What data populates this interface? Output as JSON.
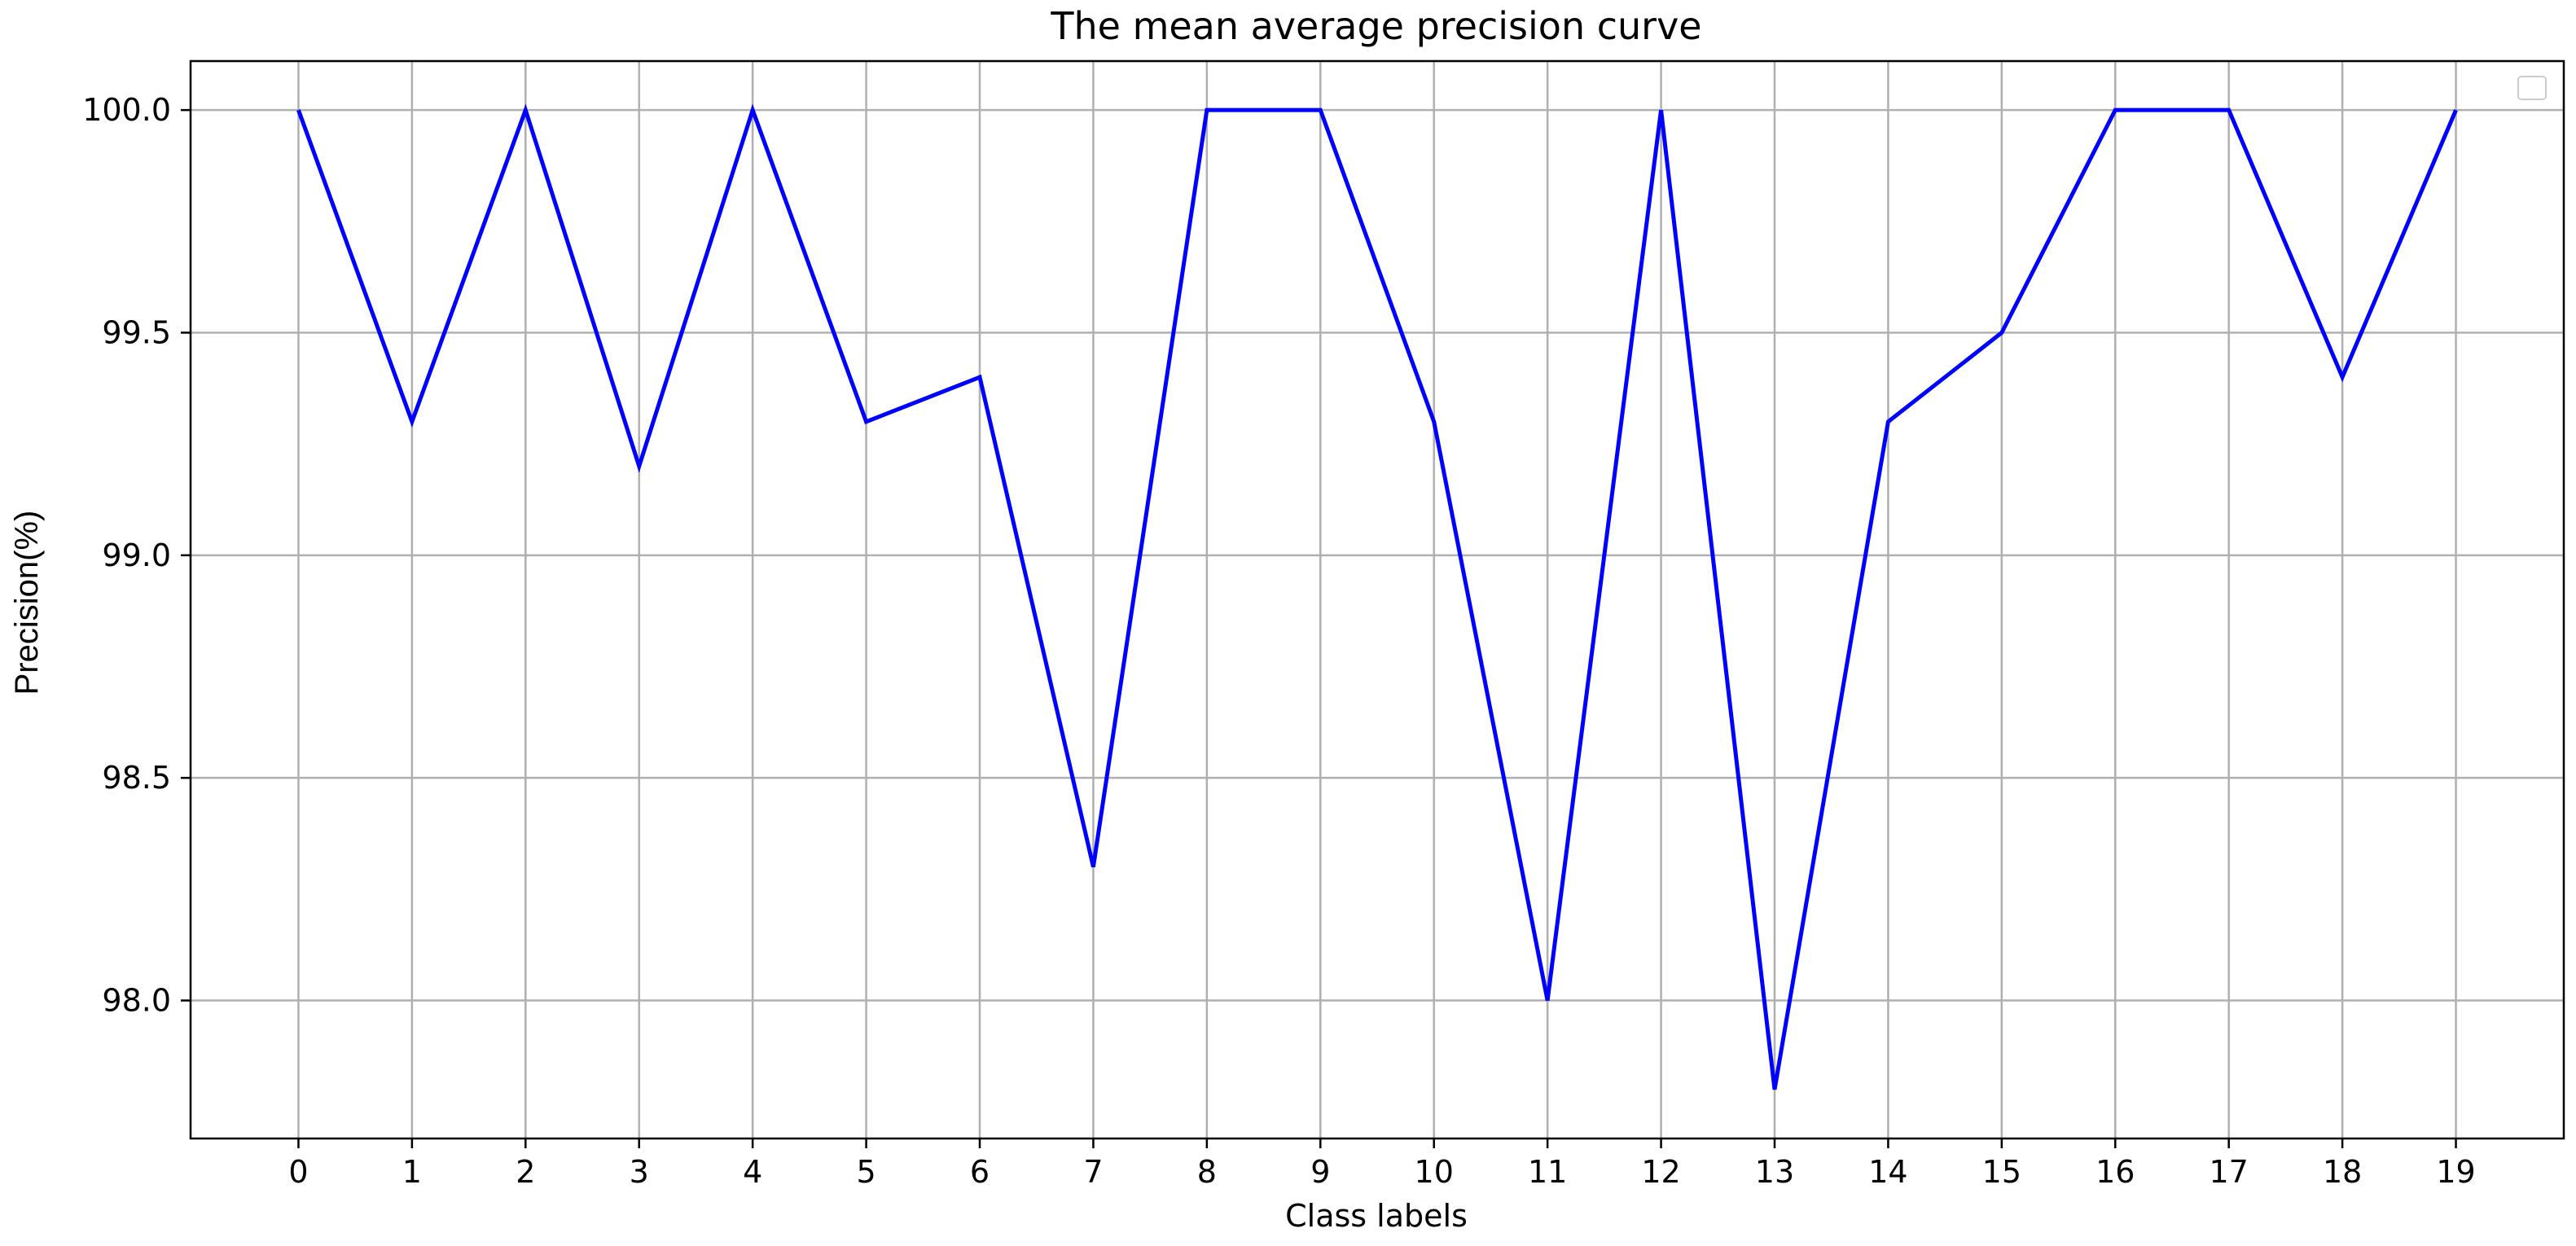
{
  "chart_data": {
    "type": "line",
    "title": "The mean average precision curve",
    "xlabel": "Class labels",
    "ylabel": "Precision(%)",
    "x": [
      0,
      1,
      2,
      3,
      4,
      5,
      6,
      7,
      8,
      9,
      10,
      11,
      12,
      13,
      14,
      15,
      16,
      17,
      18,
      19
    ],
    "x_ticks": [
      "0",
      "1",
      "2",
      "3",
      "4",
      "5",
      "6",
      "7",
      "8",
      "9",
      "10",
      "11",
      "12",
      "13",
      "14",
      "15",
      "16",
      "17",
      "18",
      "19"
    ],
    "xlim": [
      -0.95,
      19.95
    ],
    "ylim": [
      97.69,
      100.11
    ],
    "y_ticks": [
      "98.0",
      "98.5",
      "99.0",
      "99.5",
      "100.0"
    ],
    "y_tick_values": [
      98.0,
      98.5,
      99.0,
      99.5,
      100.0
    ],
    "grid": true,
    "legend": "top-right (empty)",
    "series": [
      {
        "color": "#0000ff",
        "values": [
          100.0,
          99.3,
          100.0,
          99.2,
          100.0,
          99.3,
          99.4,
          98.3,
          100.0,
          100.0,
          99.3,
          98.0,
          100.0,
          97.8,
          99.3,
          99.5,
          100.0,
          100.0,
          99.4,
          100.0
        ]
      }
    ]
  }
}
